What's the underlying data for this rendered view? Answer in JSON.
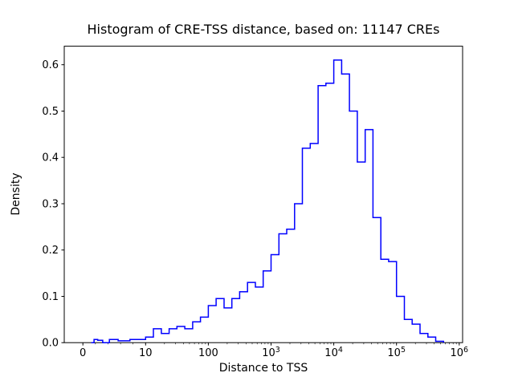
{
  "figure": {
    "background": "#ffffff"
  },
  "chart_data": {
    "type": "step-histogram",
    "title": "Histogram of CRE-TSS distance, based on: 11147 CREs",
    "xlabel": "Distance to TSS",
    "ylabel": "Density",
    "n_cres": 11147,
    "x_scale": "symlog",
    "x_range_display": [
      0,
      1000000
    ],
    "ylim": [
      0,
      0.64
    ],
    "grid": false,
    "legend": "none",
    "line_color": "#0000ff",
    "y_ticks": [
      0.0,
      0.1,
      0.2,
      0.3,
      0.4,
      0.5,
      0.6
    ],
    "x_ticks": [
      {
        "value": 0,
        "label": "0"
      },
      {
        "value": 10,
        "label": "10"
      },
      {
        "value": 100,
        "label": "100"
      },
      {
        "value": 1000,
        "base": "10",
        "exp": "3"
      },
      {
        "value": 10000,
        "base": "10",
        "exp": "4"
      },
      {
        "value": 100000,
        "base": "10",
        "exp": "5"
      },
      {
        "value": 1000000,
        "base": "10",
        "exp": "6"
      }
    ],
    "bin_edges": [
      1.33,
      1.78,
      2.37,
      3.16,
      4.22,
      5.62,
      7.5,
      10,
      13.3,
      17.8,
      23.7,
      31.6,
      42.2,
      56.2,
      75,
      100,
      133,
      178,
      237,
      316,
      422,
      562,
      750,
      1000,
      1334,
      1778,
      2371,
      3162,
      4217,
      5623,
      7499,
      10000,
      13335,
      17783,
      23714,
      31623,
      42170,
      56234,
      74989,
      100000,
      133352,
      177828,
      237137,
      316228,
      421697,
      562341
    ],
    "densities": [
      0.0,
      0.007,
      0.005,
      0.0,
      0.007,
      0.004,
      0.007,
      0.012,
      0.03,
      0.02,
      0.03,
      0.035,
      0.03,
      0.045,
      0.055,
      0.08,
      0.095,
      0.075,
      0.095,
      0.11,
      0.13,
      0.12,
      0.155,
      0.19,
      0.235,
      0.245,
      0.3,
      0.42,
      0.43,
      0.555,
      0.56,
      0.61,
      0.58,
      0.5,
      0.39,
      0.46,
      0.27,
      0.18,
      0.175,
      0.1,
      0.05,
      0.04,
      0.02,
      0.012,
      0.003
    ]
  }
}
